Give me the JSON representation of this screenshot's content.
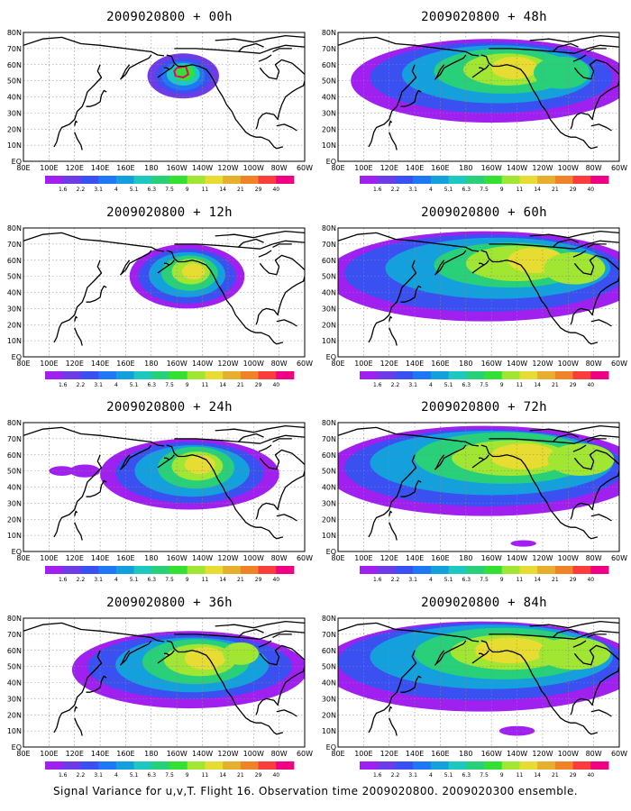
{
  "panels": [
    {
      "title": "2009020800 + 00h",
      "lead": 0
    },
    {
      "title": "2009020800 + 48h",
      "lead": 48
    },
    {
      "title": "2009020800 + 12h",
      "lead": 12
    },
    {
      "title": "2009020800 + 60h",
      "lead": 60
    },
    {
      "title": "2009020800 + 24h",
      "lead": 24
    },
    {
      "title": "2009020800 + 72h",
      "lead": 72
    },
    {
      "title": "2009020800 + 36h",
      "lead": 36
    },
    {
      "title": "2009020800 + 84h",
      "lead": 84
    }
  ],
  "map": {
    "lon_labels": [
      "80E",
      "100E",
      "120E",
      "140E",
      "160E",
      "180",
      "160W",
      "140W",
      "120W",
      "100W",
      "80W",
      "60W"
    ],
    "lat_labels": [
      "80N",
      "70N",
      "60N",
      "50N",
      "40N",
      "30N",
      "20N",
      "10N",
      "EQ"
    ],
    "lon_range": [
      "80E",
      "60W"
    ],
    "lat_range": [
      "EQ",
      "80N"
    ]
  },
  "colorbar": {
    "labels": [
      "1.6",
      "2.2",
      "3.1",
      "4",
      "5.1",
      "6.3",
      "7.5",
      "9",
      "11",
      "14",
      "21",
      "29",
      "40"
    ],
    "colors": [
      "#a020f0",
      "#6e3ce6",
      "#3a50f0",
      "#1e78f5",
      "#14a0dc",
      "#1cc8c0",
      "#28d07a",
      "#33e033",
      "#a0e632",
      "#e6dc32",
      "#e6af2d",
      "#f08228",
      "#fa3c3c",
      "#f00082"
    ]
  },
  "footer": "Signal Variance for u,v,T. Flight 16. Observation time 2009020800. 2009020300 ensemble."
}
